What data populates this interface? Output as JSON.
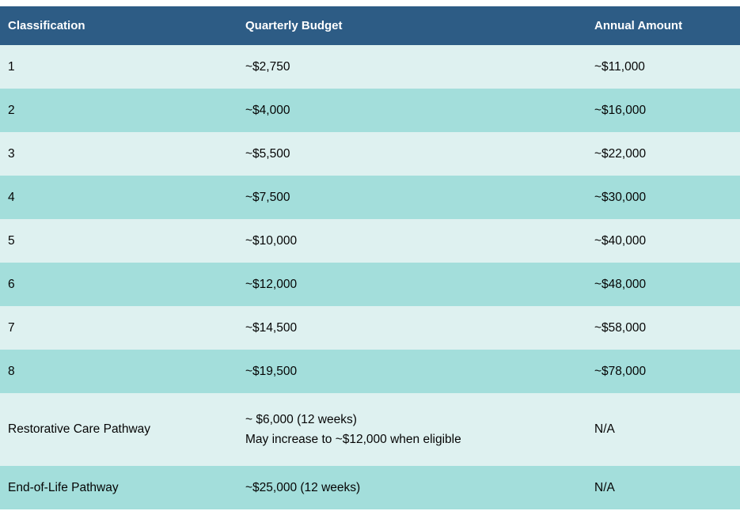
{
  "colors": {
    "header_bg": "#2d5c85",
    "header_text": "#ffffff",
    "row_light_bg": "#def1f0",
    "row_dark_bg": "#a3dedb",
    "body_text": "#050505"
  },
  "table": {
    "columns": [
      "Classification",
      "Quarterly Budget",
      "Annual Amount"
    ],
    "rows": [
      {
        "classification": "1",
        "quarterly": "~$2,750",
        "annual": "~$11,000"
      },
      {
        "classification": "2",
        "quarterly": "~$4,000",
        "annual": "~$16,000"
      },
      {
        "classification": "3",
        "quarterly": "~$5,500",
        "annual": "~$22,000"
      },
      {
        "classification": "4",
        "quarterly": "~$7,500",
        "annual": "~$30,000"
      },
      {
        "classification": "5",
        "quarterly": "~$10,000",
        "annual": "~$40,000"
      },
      {
        "classification": "6",
        "quarterly": "~$12,000",
        "annual": "~$48,000"
      },
      {
        "classification": "7",
        "quarterly": "~$14,500",
        "annual": "~$58,000"
      },
      {
        "classification": "8",
        "quarterly": "~$19,500",
        "annual": "~$78,000"
      },
      {
        "classification": "Restorative Care Pathway",
        "quarterly": "~ $6,000 (12 weeks)",
        "quarterly_note": "May increase to ~$12,000 when eligible",
        "annual": "N/A"
      },
      {
        "classification": "End-of-Life Pathway",
        "quarterly": "~$25,000 (12 weeks)",
        "annual": "N/A"
      }
    ]
  }
}
